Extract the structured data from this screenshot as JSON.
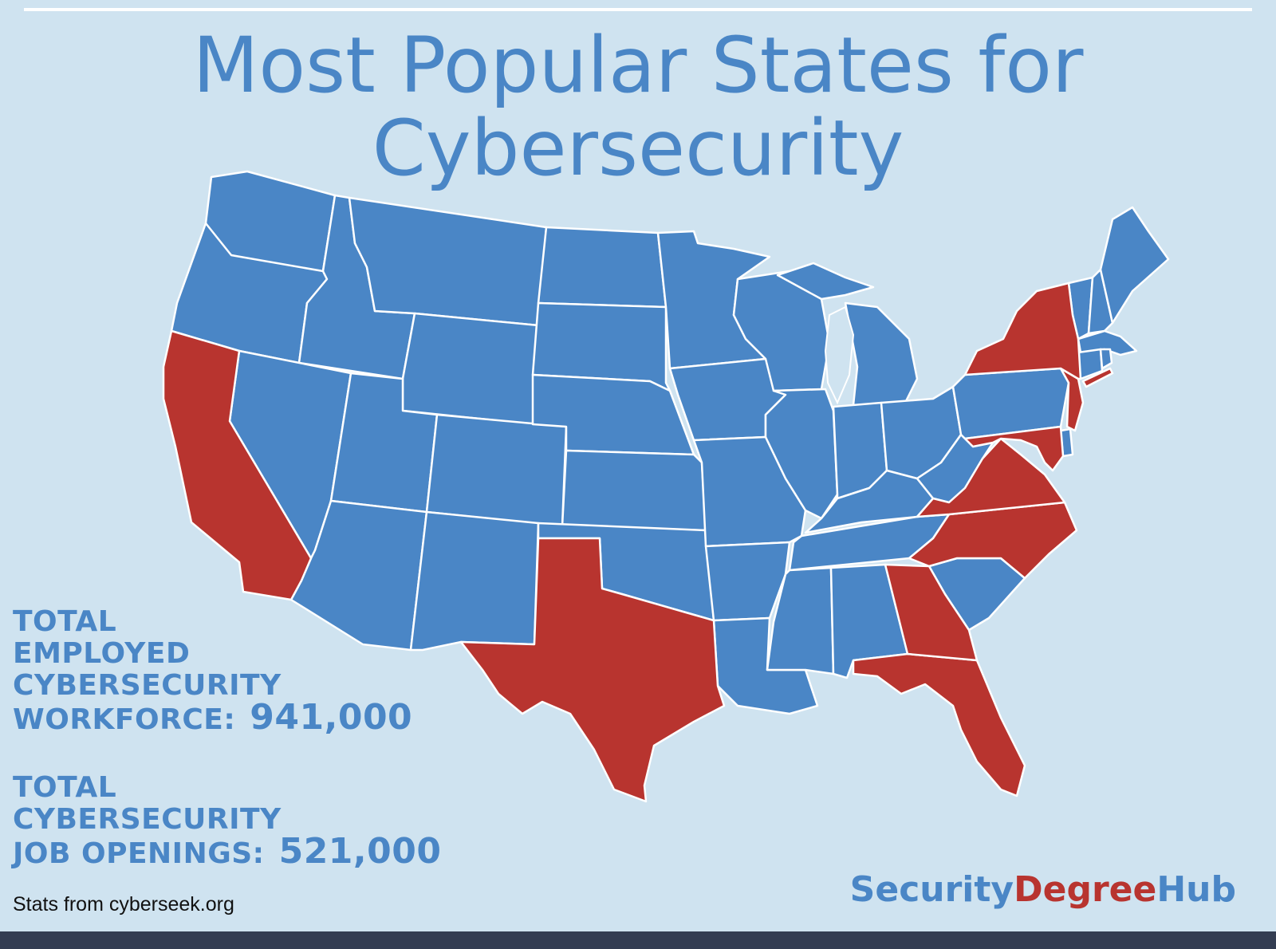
{
  "title": {
    "line1": "Most Popular States for",
    "line2": "Cybersecurity"
  },
  "colors": {
    "background": "#cfe3f0",
    "state_default": "#4a86c6",
    "state_highlight": "#b8342f",
    "border": "#ffffff",
    "footer_bar": "#333d52"
  },
  "map": {
    "highlighted_states": [
      "California",
      "Texas",
      "Florida",
      "Georgia",
      "North Carolina",
      "Virginia",
      "Maryland",
      "New York",
      "New Jersey"
    ]
  },
  "stats": {
    "employed": {
      "label_lines": [
        "TOTAL",
        "EMPLOYED",
        "CYBERSECURITY",
        "WORKFORCE:"
      ],
      "value": "941,000"
    },
    "openings": {
      "label_lines": [
        "TOTAL",
        "CYBERSECURITY",
        "JOB OPENINGS:"
      ],
      "value": "521,000"
    }
  },
  "source": "Stats from cyberseek.org",
  "brand": {
    "part1": "Security",
    "part2": "Degree",
    "part3": "Hub"
  }
}
